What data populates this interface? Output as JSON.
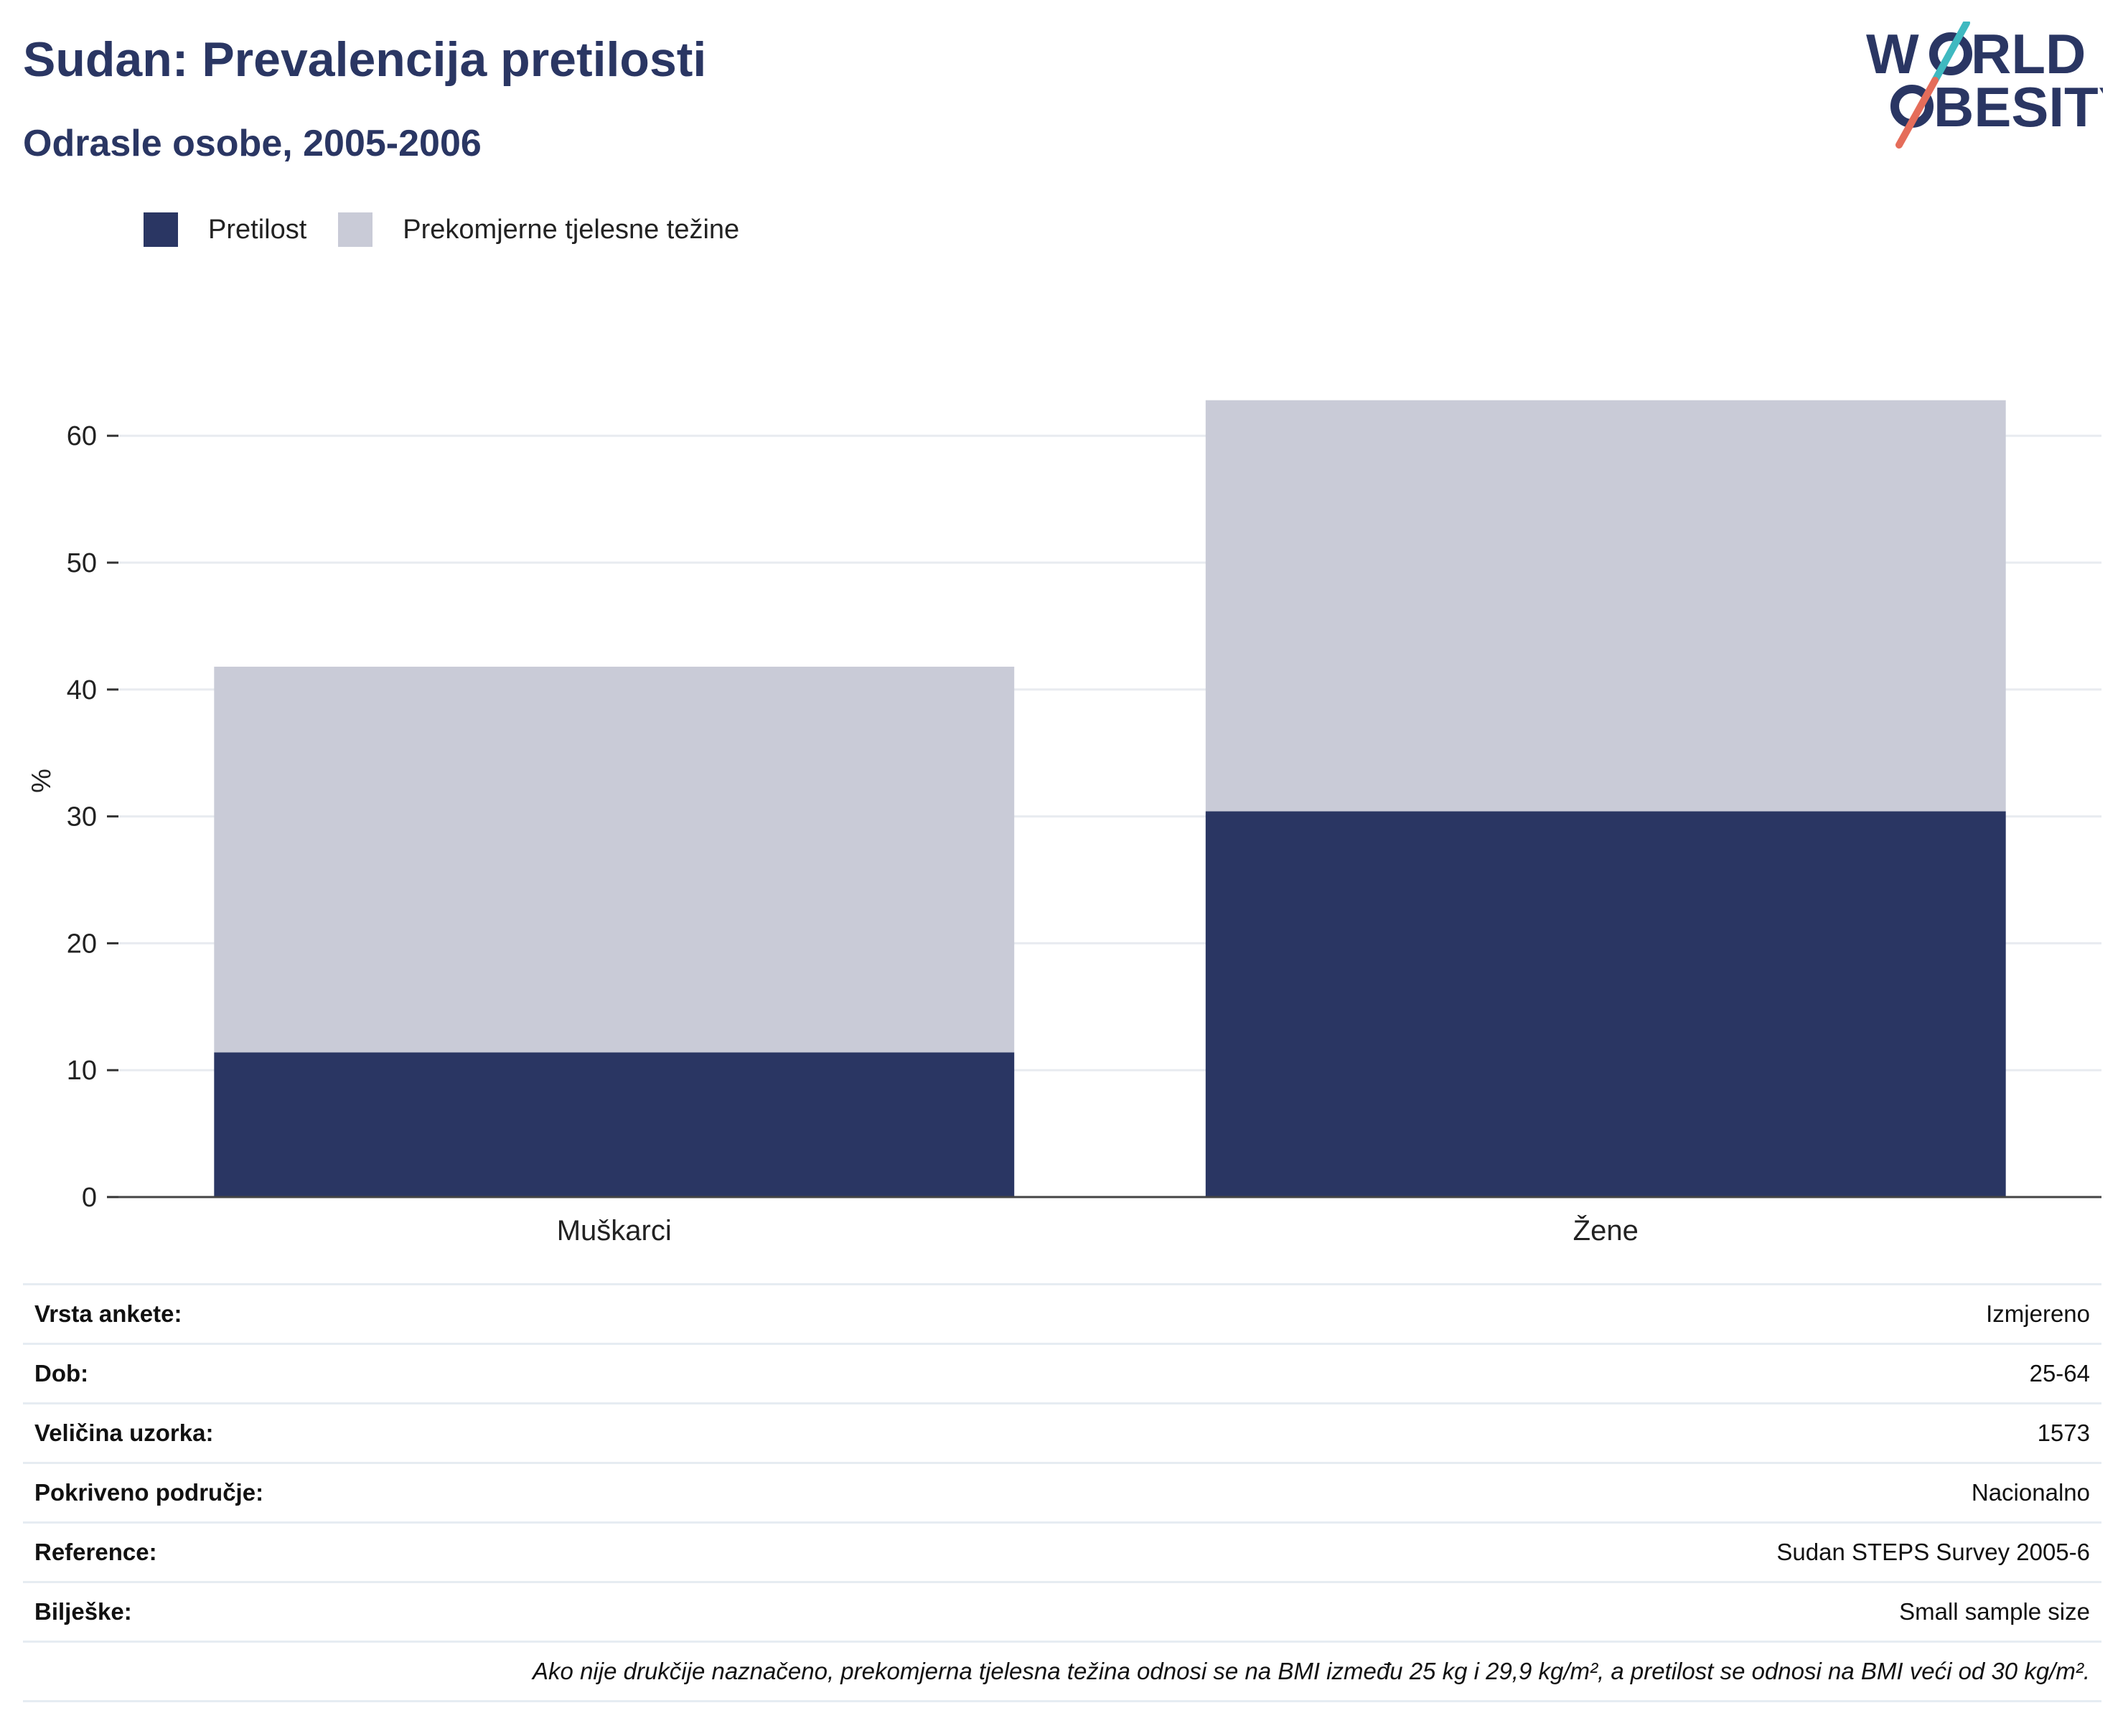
{
  "header": {
    "title": "Sudan: Prevalencija pretilosti",
    "subtitle": "Odrasle osobe, 2005-2006"
  },
  "logo": {
    "line1": "W",
    "line1b": "RLD",
    "line2": "BESITY",
    "accent_teal": "#3fb9c0",
    "accent_coral": "#e56d5a",
    "text_color": "#2a3663"
  },
  "legend": [
    {
      "label": "Pretilost",
      "color": "#2a3663"
    },
    {
      "label": "Prekomjerne tjelesne težine",
      "color": "#c9cbd7"
    }
  ],
  "chart_data": {
    "type": "bar",
    "stacked": true,
    "categories": [
      "Muškarci",
      "Žene"
    ],
    "series": [
      {
        "name": "Pretilost",
        "values": [
          11.4,
          30.4
        ],
        "color": "#2a3663"
      },
      {
        "name": "Prekomjerne tjelesne težine",
        "values": [
          30.4,
          32.4
        ],
        "color": "#c9cbd7"
      }
    ],
    "xlabel": "",
    "ylabel": "%",
    "ylim": [
      0,
      66
    ],
    "yticks": [
      0,
      10,
      20,
      30,
      40,
      50,
      60
    ],
    "grid": true,
    "legend_position": "top-left"
  },
  "info": {
    "rows": [
      {
        "key": "Vrsta ankete:",
        "value": "Izmjereno"
      },
      {
        "key": "Dob:",
        "value": "25-64"
      },
      {
        "key": "Veličina uzorka:",
        "value": "1573"
      },
      {
        "key": "Pokriveno područje:",
        "value": "Nacionalno"
      },
      {
        "key": "Reference:",
        "value": "Sudan STEPS Survey 2005-6"
      },
      {
        "key": "Bilješke:",
        "value": "Small sample size"
      }
    ],
    "footnote": "Ako nije drukčije naznačeno, prekomjerna tjelesna težina odnosi se na BMI između 25 kg i 29,9 kg/m², a pretilost se odnosi na BMI veći od 30 kg/m²."
  }
}
